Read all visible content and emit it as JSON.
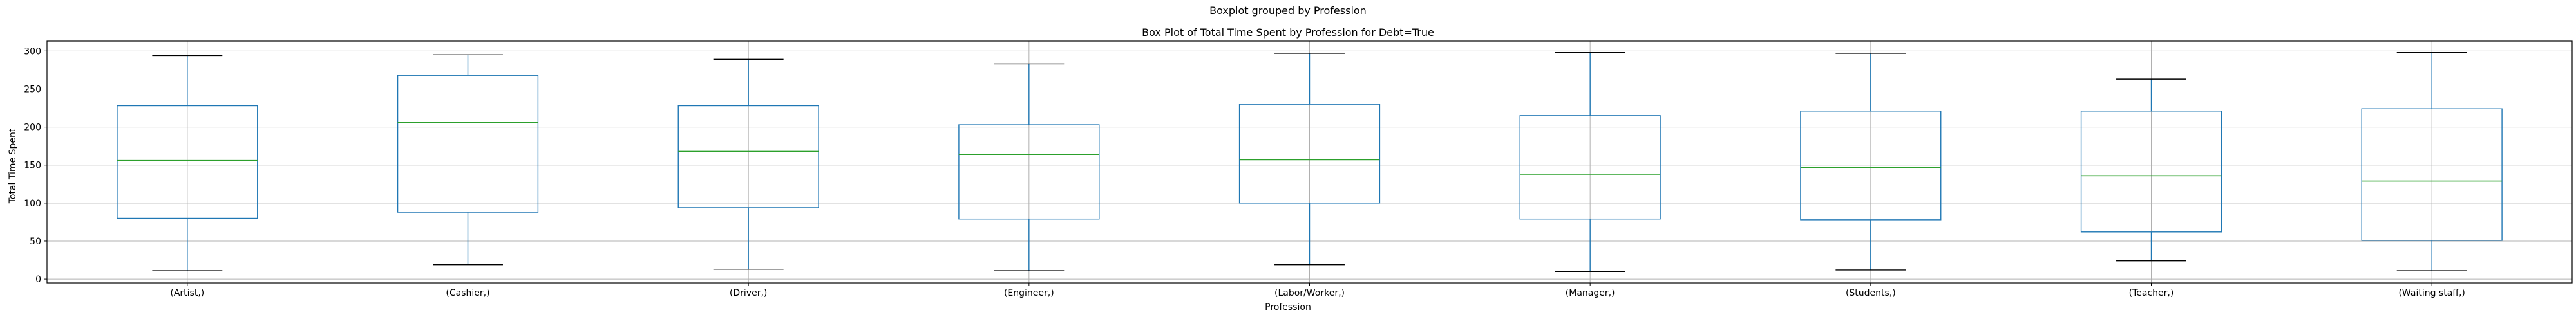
{
  "chart_data": {
    "type": "boxplot",
    "suptitle": "Boxplot grouped by Profession",
    "title": "Box Plot of Total Time Spent by Profession for Debt=True",
    "xlabel": "Profession",
    "ylabel": "Total Time Spent",
    "ylim": [
      -5,
      313
    ],
    "yticks": [
      0,
      50,
      100,
      150,
      200,
      250,
      300
    ],
    "grid": true,
    "colors": {
      "box": "#1f77b4",
      "median": "#2ca02c",
      "cap": "#000000",
      "grid": "#b0b0b0"
    },
    "categories": [
      "(Artist,)",
      "(Cashier,)",
      "(Driver,)",
      "(Engineer,)",
      "(Labor/Worker,)",
      "(Manager,)",
      "(Students,)",
      "(Teacher,)",
      "(Waiting staff,)"
    ],
    "boxes": [
      {
        "label": "(Artist,)",
        "whislo": 11,
        "q1": 80,
        "med": 156,
        "q3": 228,
        "whishi": 294
      },
      {
        "label": "(Cashier,)",
        "whislo": 19,
        "q1": 88,
        "med": 206,
        "q3": 268,
        "whishi": 295
      },
      {
        "label": "(Driver,)",
        "whislo": 13,
        "q1": 94,
        "med": 168,
        "q3": 228,
        "whishi": 289
      },
      {
        "label": "(Engineer,)",
        "whislo": 11,
        "q1": 79,
        "med": 164,
        "q3": 203,
        "whishi": 283
      },
      {
        "label": "(Labor/Worker,)",
        "whislo": 19,
        "q1": 100,
        "med": 157,
        "q3": 230,
        "whishi": 297
      },
      {
        "label": "(Manager,)",
        "whislo": 10,
        "q1": 79,
        "med": 138,
        "q3": 215,
        "whishi": 298
      },
      {
        "label": "(Students,)",
        "whislo": 12,
        "q1": 78,
        "med": 147,
        "q3": 221,
        "whishi": 297
      },
      {
        "label": "(Teacher,)",
        "whislo": 24,
        "q1": 62,
        "med": 136,
        "q3": 221,
        "whishi": 263
      },
      {
        "label": "(Waiting staff,)",
        "whislo": 11,
        "q1": 51,
        "med": 129,
        "q3": 224,
        "whishi": 298
      }
    ]
  }
}
